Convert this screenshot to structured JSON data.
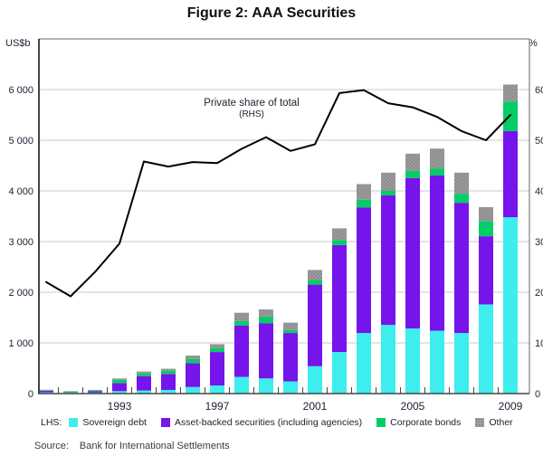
{
  "title": "Figure 2: AAA Securities",
  "left_axis_unit": "US$b",
  "right_axis_unit": "%",
  "annotation": {
    "line1": "Private share of total",
    "line2": "(RHS)"
  },
  "legend": {
    "prefix": "LHS:",
    "items": [
      {
        "label": "Sovereign debt",
        "color": "#3EEDED",
        "pattern": false
      },
      {
        "label": "Asset-backed securities (including agencies)",
        "color": "#7514EB",
        "pattern": false
      },
      {
        "label": "Corporate bonds",
        "color": "#04CD68",
        "pattern": false
      },
      {
        "label": "Other",
        "color": "#9C9C9C",
        "pattern": true
      }
    ]
  },
  "source": {
    "label": "Source:",
    "text": "Bank for International Settlements"
  },
  "colors": {
    "sovereign": "#3EEDED",
    "abs": "#7514EB",
    "corporate": "#04CD68",
    "other": "#9C9C9C",
    "other_dot": "#777777",
    "line": "#000000",
    "grid": "#C9C9C9",
    "spine": "#444444",
    "text": "#1F1F30"
  },
  "chart_data": {
    "type": "stacked-bar+line",
    "title": "Figure 2: AAA Securities",
    "x": [
      1990,
      1991,
      1992,
      1993,
      1994,
      1995,
      1996,
      1997,
      1998,
      1999,
      2000,
      2001,
      2002,
      2003,
      2004,
      2005,
      2006,
      2007,
      2008,
      2009
    ],
    "series": [
      {
        "name": "Sovereign debt",
        "color": "#3EEDED",
        "pattern": false,
        "values": [
          25,
          18,
          20,
          48,
          60,
          72,
          130,
          160,
          330,
          300,
          240,
          540,
          820,
          1195,
          1355,
          1285,
          1240,
          1195,
          1760,
          3480
        ]
      },
      {
        "name": "Asset-backed securities (including agencies)",
        "color": "#7514EB",
        "pattern": false,
        "values": [
          30,
          5,
          25,
          160,
          285,
          315,
          470,
          660,
          1015,
          1090,
          955,
          1610,
          2110,
          2480,
          2555,
          2970,
          3065,
          2570,
          1345,
          1700
        ]
      },
      {
        "name": "Corporate bonds",
        "color": "#04CD68",
        "pattern": false,
        "values": [
          10,
          18,
          15,
          65,
          60,
          65,
          80,
          80,
          85,
          130,
          60,
          90,
          100,
          150,
          90,
          140,
          140,
          180,
          300,
          585
        ]
      },
      {
        "name": "Other",
        "color": "#9C9C9C",
        "pattern": true,
        "values": [
          10,
          8,
          12,
          25,
          30,
          38,
          70,
          75,
          165,
          140,
          145,
          200,
          230,
          310,
          360,
          340,
          390,
          415,
          275,
          335
        ]
      }
    ],
    "line_series": {
      "name": "Private share of total (RHS)",
      "axis": "right",
      "color": "#000000",
      "values": [
        22,
        19.2,
        24,
        29.6,
        45.8,
        44.8,
        45.7,
        45.5,
        48.3,
        50.6,
        47.9,
        49.2,
        59.3,
        59.9,
        57.3,
        56.5,
        54.6,
        51.8,
        50,
        55
      ]
    },
    "left_axis": {
      "label": "US$b",
      "min": 0,
      "max": 7000,
      "tick_values": [
        0,
        1000,
        2000,
        3000,
        4000,
        5000,
        6000
      ],
      "tick_labels": [
        "0",
        "1 000",
        "2 000",
        "3 000",
        "4 000",
        "5 000",
        "6 000"
      ]
    },
    "right_axis": {
      "label": "%",
      "min": 0,
      "max": 70,
      "tick_values": [
        0,
        10,
        20,
        30,
        40,
        50,
        60
      ],
      "tick_labels": [
        "0",
        "10",
        "20",
        "30",
        "40",
        "50",
        "60"
      ]
    },
    "x_tick_years": [
      1993,
      1997,
      2001,
      2005,
      2009
    ],
    "grid": true,
    "legend_position": "bottom"
  }
}
